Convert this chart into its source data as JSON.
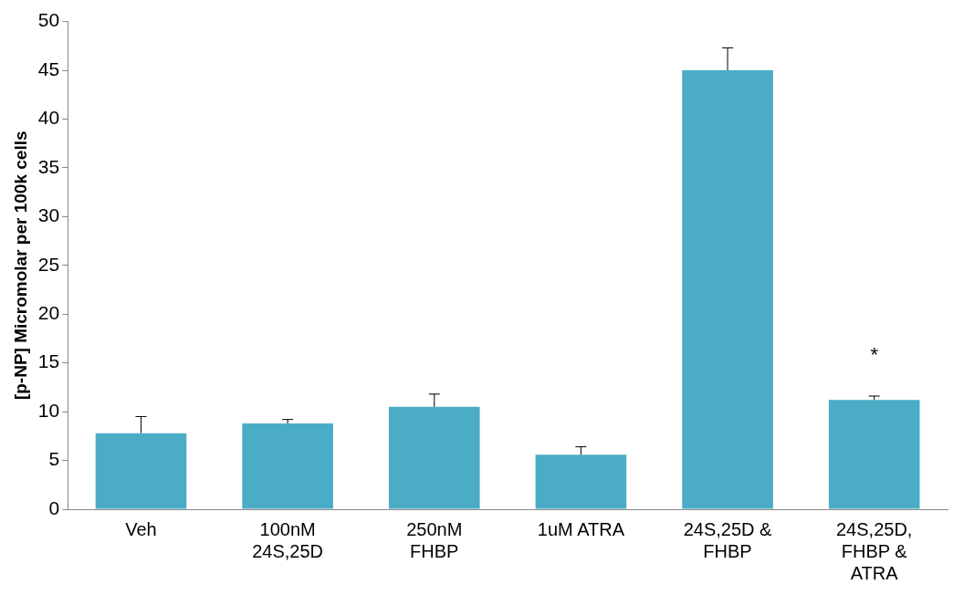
{
  "chart_data": {
    "type": "bar",
    "ylabel": "[p-NP] Micromolar per 100k cells",
    "categories": [
      "Veh",
      "100nM\n24S,25D",
      "250nM\nFHBP",
      "1uM ATRA",
      "24S,25D &\nFHBP",
      "24S,25D,\nFHBP &\nATRA"
    ],
    "values": [
      7.8,
      8.8,
      10.5,
      5.6,
      45.0,
      11.2
    ],
    "errors": [
      [
        7.8,
        9.5
      ],
      [
        8.8,
        9.2
      ],
      [
        10.5,
        11.8
      ],
      [
        5.6,
        6.4
      ],
      [
        45.0,
        47.3
      ],
      [
        11.2,
        11.6
      ]
    ],
    "color": "#4bacc6",
    "ylim": [
      0,
      50
    ],
    "yticks": [
      0,
      5,
      10,
      15,
      20,
      25,
      30,
      35,
      40,
      45,
      50
    ],
    "annotations": [
      "*"
    ],
    "grid": false,
    "legend": false
  }
}
